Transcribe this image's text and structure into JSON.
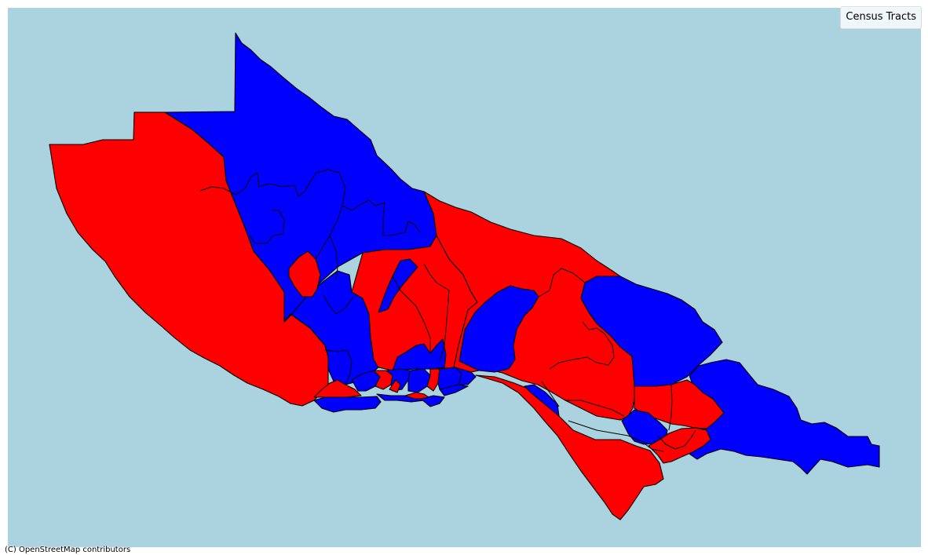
{
  "map": {
    "legend_title": "Census Tracts",
    "attribution": "(C) OpenStreetMap contributors",
    "colors": {
      "background": "#aad3df",
      "category_a": "#ff0000",
      "category_b": "#0000ff",
      "outline": "#000000"
    }
  }
}
